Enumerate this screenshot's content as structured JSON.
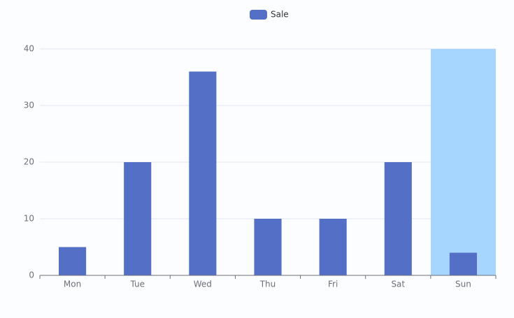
{
  "chart_data": {
    "type": "bar",
    "categories": [
      "Mon",
      "Tue",
      "Wed",
      "Thu",
      "Fri",
      "Sat",
      "Sun"
    ],
    "series": [
      {
        "name": "Sale",
        "color": "#5470c6",
        "values": [
          5,
          20,
          36,
          10,
          10,
          20,
          4
        ]
      }
    ],
    "ylim": [
      0,
      40
    ],
    "yticks": [
      0,
      10,
      20,
      30,
      40
    ],
    "grid": true,
    "legend": "top"
  }
}
